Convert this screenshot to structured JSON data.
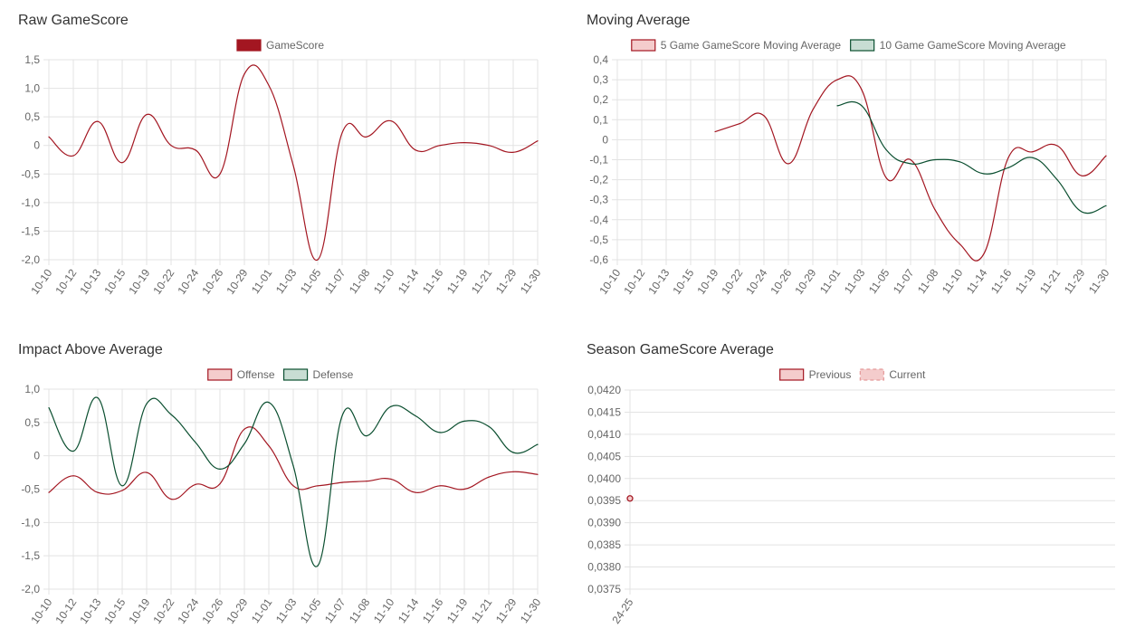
{
  "panels": {
    "raw": {
      "title": "Raw GameScore"
    },
    "moving": {
      "title": "Moving Average"
    },
    "impact": {
      "title": "Impact Above Average"
    },
    "season": {
      "title": "Season GameScore Average"
    }
  },
  "chart_data": [
    {
      "id": "raw",
      "type": "line",
      "title": "Raw GameScore",
      "categories": [
        "10-10",
        "10-12",
        "10-13",
        "10-15",
        "10-19",
        "10-22",
        "10-24",
        "10-26",
        "10-29",
        "11-01",
        "11-03",
        "11-05",
        "11-07",
        "11-08",
        "11-10",
        "11-14",
        "11-16",
        "11-19",
        "11-21",
        "11-29",
        "11-30"
      ],
      "ylim": [
        -2.0,
        1.5
      ],
      "yticks": [
        "1,5",
        "1,0",
        "0,5",
        "0",
        "-0,5",
        "-1,0",
        "-1,5",
        "-2,0"
      ],
      "ytick_values": [
        1.5,
        1.0,
        0.5,
        0,
        -0.5,
        -1.0,
        -1.5,
        -2.0
      ],
      "grid": true,
      "legend": "top-center",
      "series": [
        {
          "name": "GameScore",
          "color": "#a31621",
          "fill": "#a31621",
          "values": [
            0.15,
            -0.18,
            0.42,
            -0.3,
            0.54,
            0.0,
            -0.08,
            -0.5,
            1.25,
            1.05,
            -0.35,
            -2.0,
            0.22,
            0.15,
            0.43,
            -0.08,
            0.0,
            0.05,
            0.0,
            -0.12,
            0.08
          ]
        }
      ]
    },
    {
      "id": "moving",
      "type": "line",
      "title": "Moving Average",
      "categories": [
        "10-10",
        "10-12",
        "10-13",
        "10-15",
        "10-19",
        "10-22",
        "10-24",
        "10-26",
        "10-29",
        "11-01",
        "11-03",
        "11-05",
        "11-07",
        "11-08",
        "11-10",
        "11-14",
        "11-16",
        "11-19",
        "11-21",
        "11-29",
        "11-30"
      ],
      "ylim": [
        -0.6,
        0.4
      ],
      "yticks": [
        "0,4",
        "0,3",
        "0,2",
        "0,1",
        "0",
        "-0,1",
        "-0,2",
        "-0,3",
        "-0,4",
        "-0,5",
        "-0,6"
      ],
      "ytick_values": [
        0.4,
        0.3,
        0.2,
        0.1,
        0,
        -0.1,
        -0.2,
        -0.3,
        -0.4,
        -0.5,
        -0.6
      ],
      "grid": true,
      "legend": "top-center",
      "series": [
        {
          "name": "5 Game GameScore Moving Average",
          "color": "#a31621",
          "fill": "#f4cccc",
          "values": [
            null,
            null,
            null,
            null,
            0.04,
            0.08,
            0.12,
            -0.12,
            0.15,
            0.3,
            0.25,
            -0.19,
            -0.1,
            -0.35,
            -0.52,
            -0.57,
            -0.09,
            -0.06,
            -0.03,
            -0.18,
            -0.08
          ]
        },
        {
          "name": "10 Game GameScore Moving Average",
          "color": "#0b4f30",
          "fill": "#c8ddd3",
          "values": [
            null,
            null,
            null,
            null,
            null,
            null,
            null,
            null,
            null,
            0.17,
            0.17,
            -0.05,
            -0.12,
            -0.1,
            -0.11,
            -0.17,
            -0.14,
            -0.09,
            -0.2,
            -0.36,
            -0.33
          ]
        }
      ]
    },
    {
      "id": "impact",
      "type": "line",
      "title": "Impact Above Average",
      "categories": [
        "10-10",
        "10-12",
        "10-13",
        "10-15",
        "10-19",
        "10-22",
        "10-24",
        "10-26",
        "10-29",
        "11-01",
        "11-03",
        "11-05",
        "11-07",
        "11-08",
        "11-10",
        "11-14",
        "11-16",
        "11-19",
        "11-21",
        "11-29",
        "11-30"
      ],
      "ylim": [
        -2.0,
        1.0
      ],
      "yticks": [
        "1,0",
        "0,5",
        "0",
        "-0,5",
        "-1,0",
        "-1,5",
        "-2,0"
      ],
      "ytick_values": [
        1.0,
        0.5,
        0,
        -0.5,
        -1.0,
        -1.5,
        -2.0
      ],
      "grid": true,
      "legend": "top-center",
      "series": [
        {
          "name": "Offense",
          "color": "#a31621",
          "fill": "#f4cccc",
          "values": [
            -0.55,
            -0.3,
            -0.55,
            -0.52,
            -0.25,
            -0.65,
            -0.43,
            -0.42,
            0.4,
            0.15,
            -0.45,
            -0.45,
            -0.4,
            -0.38,
            -0.35,
            -0.55,
            -0.45,
            -0.5,
            -0.32,
            -0.24,
            -0.28
          ]
        },
        {
          "name": "Defense",
          "color": "#0b4f30",
          "fill": "#c8ddd3",
          "values": [
            0.72,
            0.07,
            0.87,
            -0.45,
            0.78,
            0.62,
            0.2,
            -0.2,
            0.18,
            0.8,
            -0.15,
            -1.65,
            0.6,
            0.3,
            0.74,
            0.6,
            0.35,
            0.52,
            0.44,
            0.05,
            0.17
          ]
        }
      ]
    },
    {
      "id": "season",
      "type": "line",
      "title": "Season GameScore Average",
      "categories": [
        "24-25"
      ],
      "ylim": [
        0.0375,
        0.042
      ],
      "yticks": [
        "0,0420",
        "0,0415",
        "0,0410",
        "0,0405",
        "0,0400",
        "0,0395",
        "0,0390",
        "0,0385",
        "0,0380",
        "0,0375"
      ],
      "ytick_values": [
        0.042,
        0.0415,
        0.041,
        0.0405,
        0.04,
        0.0395,
        0.039,
        0.0385,
        0.038,
        0.0375
      ],
      "grid": true,
      "legend": "top-center",
      "series": [
        {
          "name": "Previous",
          "color": "#a31621",
          "fill": "#f4cccc",
          "values": [
            0.03955
          ]
        },
        {
          "name": "Current",
          "color": "#e49a9a",
          "fill": "#f4cccc",
          "dashed": true,
          "values": [
            null
          ]
        }
      ]
    }
  ]
}
